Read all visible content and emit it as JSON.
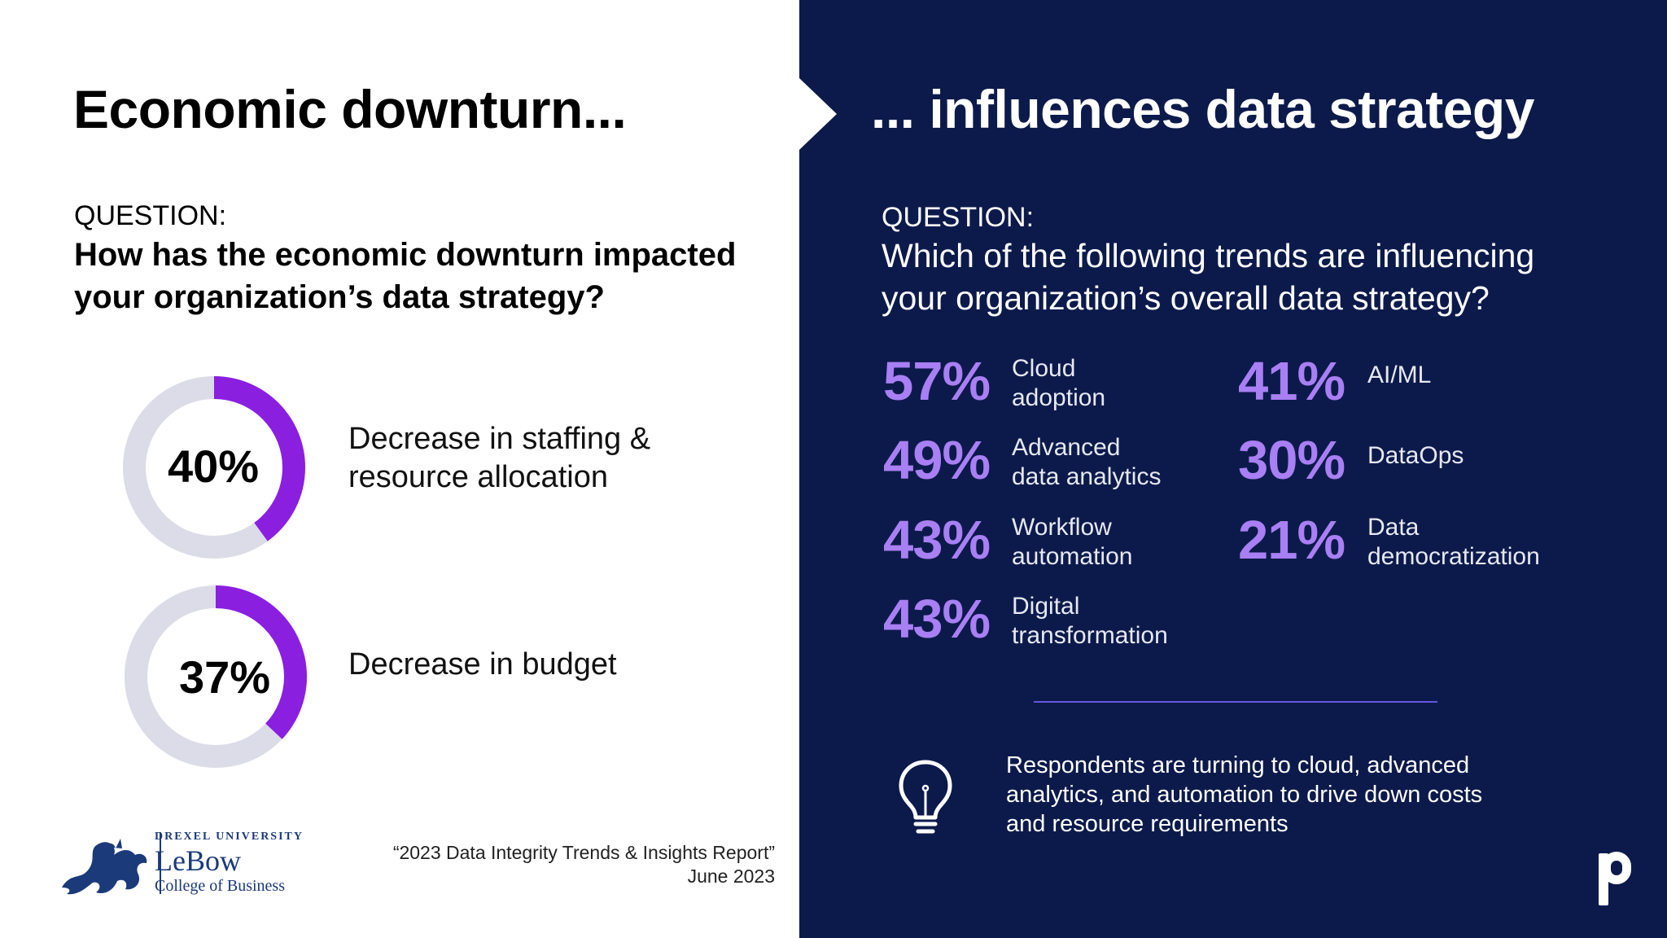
{
  "left": {
    "title": "Economic downturn...",
    "question_label": "QUESTION:",
    "question_line1": "How has the economic downturn impacted",
    "question_line2": "your organization’s data strategy?",
    "donuts": [
      {
        "value": "40%",
        "fraction": 0.4,
        "label_line1": "Decrease in staffing &",
        "label_line2": "resource allocation"
      },
      {
        "value": "37%",
        "fraction": 0.37,
        "label_line1": "Decrease in budget",
        "label_line2": ""
      }
    ],
    "logo": {
      "line1": "DREXEL UNIVERSITY",
      "line2": "LeBow",
      "line3": "College of Business"
    },
    "source_line1": "“2023 Data Integrity Trends & Insights Report”",
    "source_line2": "June 2023"
  },
  "right": {
    "title": "... influences data strategy",
    "question_label": "QUESTION:",
    "question_line1": "Which of the following trends are influencing",
    "question_line2": "your organization’s overall data strategy?",
    "stats": [
      {
        "pct": "57%",
        "line1": "Cloud",
        "line2": "adoption"
      },
      {
        "pct": "49%",
        "line1": "Advanced",
        "line2": "data analytics"
      },
      {
        "pct": "43%",
        "line1": "Workflow",
        "line2": "automation"
      },
      {
        "pct": "43%",
        "line1": "Digital",
        "line2": "transformation"
      },
      {
        "pct": "41%",
        "line1": "AI/ML",
        "line2": ""
      },
      {
        "pct": "30%",
        "line1": "DataOps",
        "line2": ""
      },
      {
        "pct": "21%",
        "line1": "Data",
        "line2": "democratization"
      }
    ],
    "insight_line1": "Respondents are turning to cloud, advanced",
    "insight_line2": "analytics, and automation to drive down costs",
    "insight_line3": "and resource requirements",
    "brand_mark": "p"
  },
  "colors": {
    "navy": "#0c1a4b",
    "purple": "#8a1fe0",
    "light_purple": "#a97ff4",
    "track": "#dcdce8"
  },
  "icons": [
    "lightbulb-icon",
    "dragon-logo-icon",
    "precisely-logo-icon",
    "chevron-arrow-icon"
  ]
}
